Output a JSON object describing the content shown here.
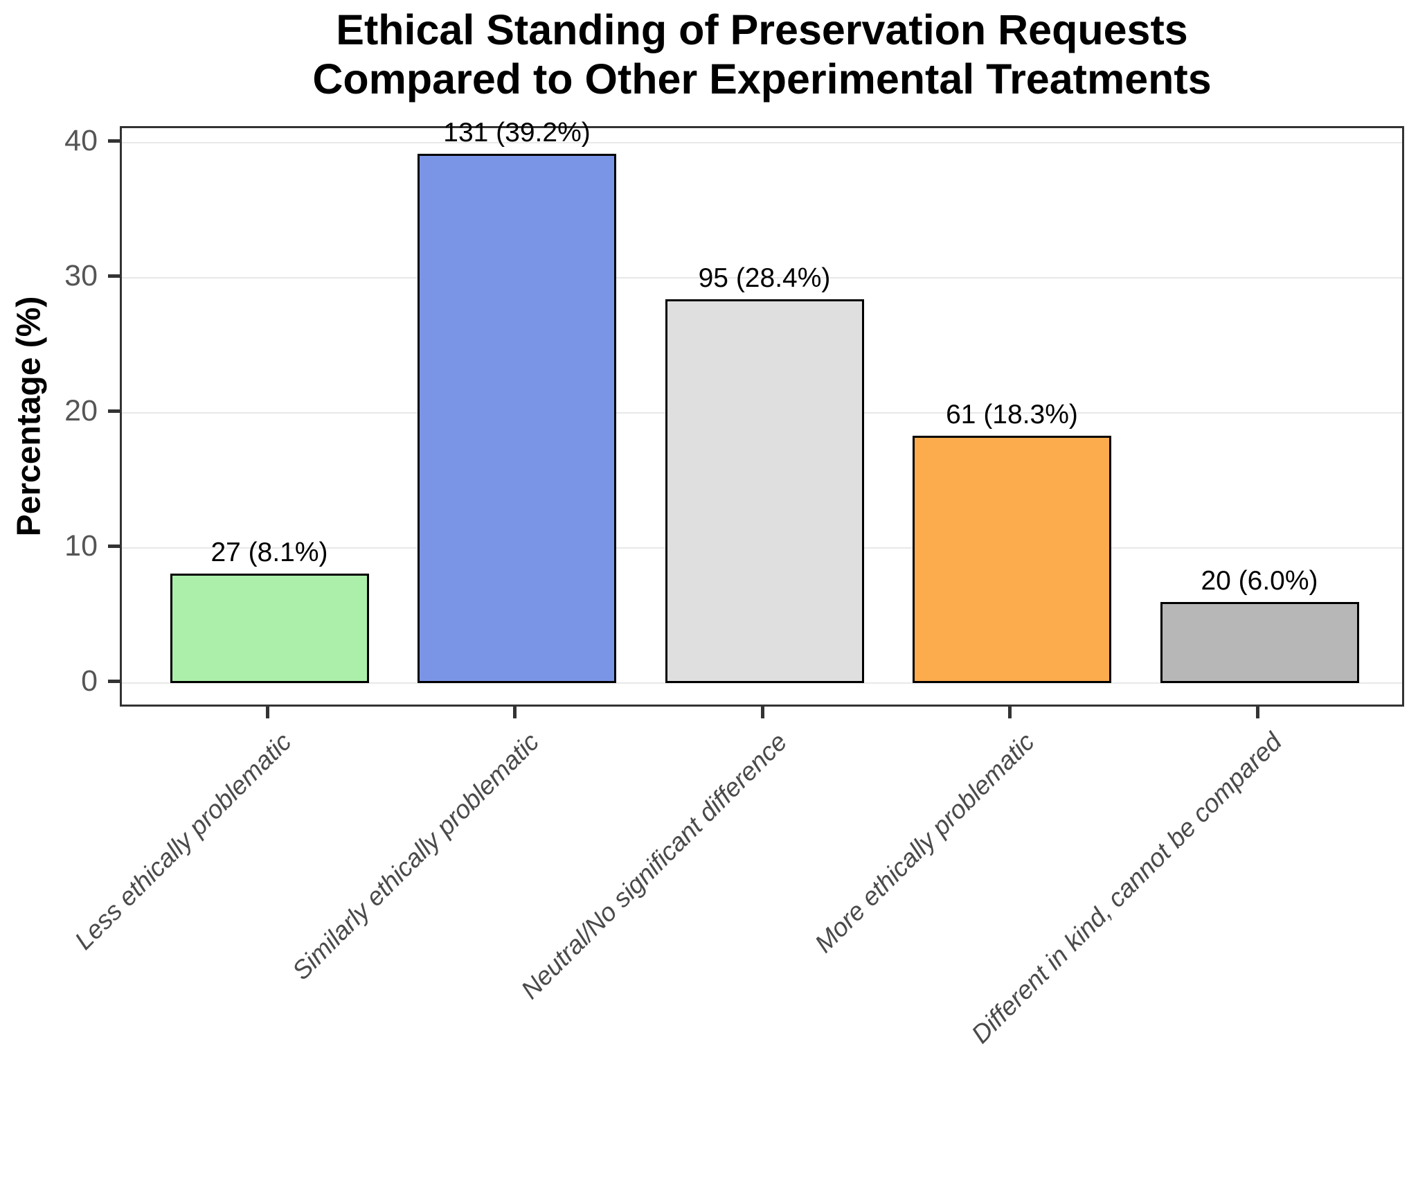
{
  "chart_data": {
    "type": "bar",
    "title": "Ethical Standing of Preservation Requests\nCompared to Other Experimental Treatments",
    "ylabel": "Percentage (%)",
    "xlabel": "",
    "categories": [
      "Less ethically problematic",
      "Similarly ethically problematic",
      "Neutral/No significant difference",
      "More ethically problematic",
      "Different in kind, cannot be compared"
    ],
    "counts": [
      27,
      131,
      95,
      61,
      20
    ],
    "values": [
      8.1,
      39.2,
      28.4,
      18.3,
      6.0
    ],
    "bar_labels": [
      "27 (8.1%)",
      "131 (39.2%)",
      "95 (28.4%)",
      "61 (18.3%)",
      "20 (6.0%)"
    ],
    "bar_colors": [
      "#ABEFAA",
      "#7B95E6",
      "#DFDFDF",
      "#FCAB4D",
      "#B7B7B7"
    ],
    "bar_border_color": "#000000",
    "yticks": [
      0,
      10,
      20,
      30,
      40
    ],
    "ylim": [
      0,
      41.2
    ],
    "grid": "horizontal",
    "legend": "none",
    "colors": {
      "grid": "#E8E8E8",
      "panel_border": "#333333",
      "tick": "#333333",
      "y_tick_label": "#555555",
      "x_tick_label": "#4A4A4A",
      "title_text": "#000000",
      "background": "#FFFFFF"
    }
  }
}
